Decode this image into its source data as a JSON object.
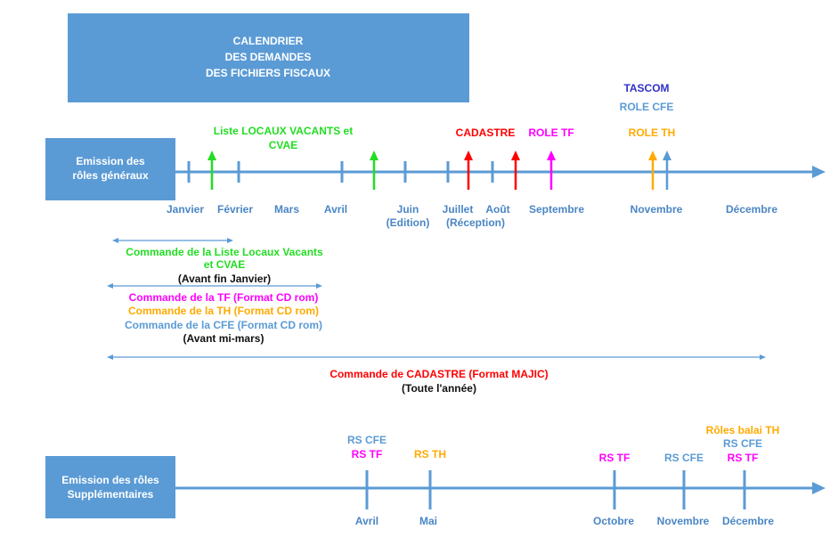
{
  "title": {
    "lines": [
      "CALENDRIER",
      "DES DEMANDES",
      "DES FICHIERS FISCAUX"
    ]
  },
  "general": {
    "label": [
      "Emission des",
      "rôles généraux"
    ],
    "months": [
      "Janvier",
      "Février",
      "Mars",
      "Avril",
      "Juin",
      "(Edition)",
      "Juillet",
      "(Réception)",
      "Août",
      "Septembre",
      "Novembre",
      "Décembre"
    ],
    "events": [
      "Liste LOCAUX VACANTS et",
      "CVAE",
      "CADASTRE",
      "ROLE TF",
      "TASCOM",
      "ROLE CFE",
      "ROLE TH"
    ]
  },
  "orders": [
    {
      "lines": [
        "Commande de la Liste Locaux Vacants",
        "et CVAE"
      ],
      "deadline": "(Avant fin Janvier)"
    },
    {
      "lines": [
        "Commande de la TF (Format CD rom)",
        "Commande de la TH (Format CD rom)",
        "Commande de la CFE (Format CD rom)"
      ],
      "deadline": "(Avant mi-mars)"
    },
    {
      "lines": [
        "Commande de CADASTRE (Format MAJIC)"
      ],
      "deadline": "(Toute l'année)"
    }
  ],
  "supplementary": {
    "label": [
      "Emission des rôles",
      "Supplémentaires"
    ],
    "months": [
      "Avril",
      "Mai",
      "Octobre",
      "Novembre",
      "Décembre"
    ],
    "events": [
      "RS CFE",
      "RS TF",
      "RS TH",
      "RS TF",
      "RS CFE",
      "Rôles balai TH",
      "RS CFE",
      "RS TF"
    ]
  }
}
